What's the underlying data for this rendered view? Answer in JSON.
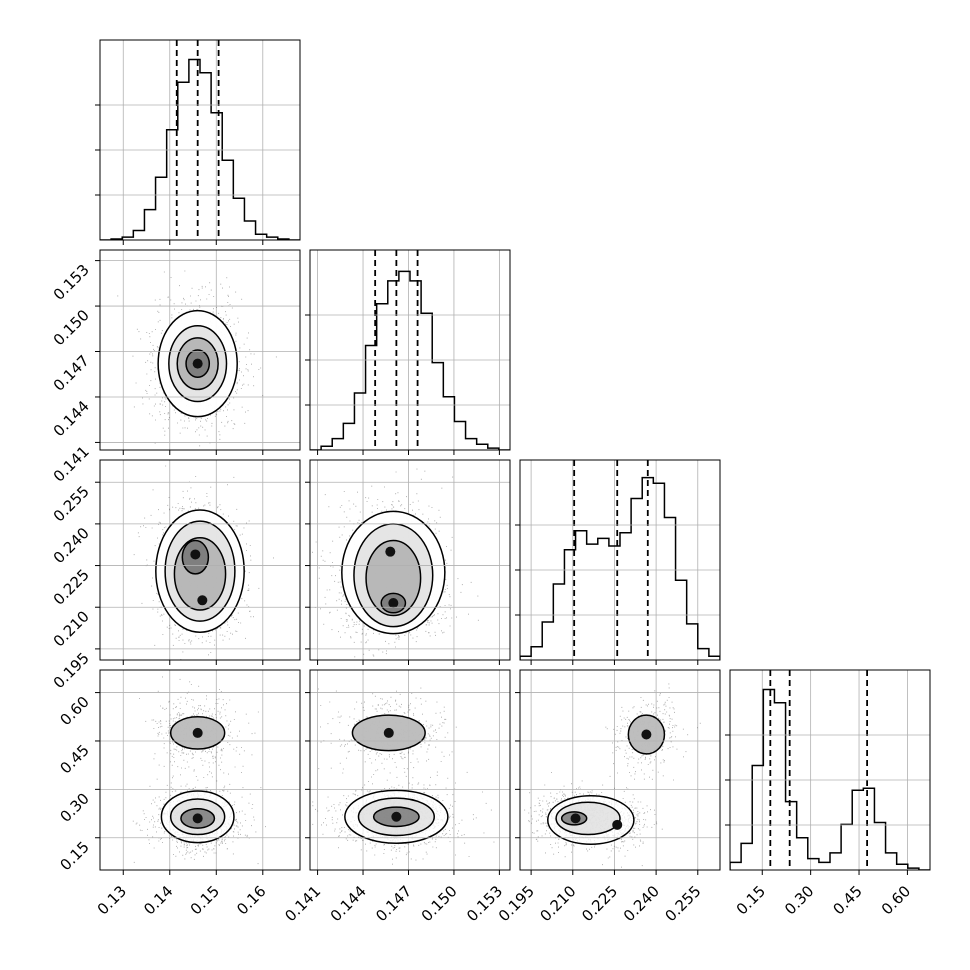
{
  "chart_data": {
    "type": "corner",
    "grid": true,
    "parameters": [
      {
        "range": [
          0.125,
          0.168
        ],
        "ticks": [
          "0.13",
          "0.14",
          "0.15",
          "0.16"
        ],
        "tick_values": [
          0.13,
          0.14,
          0.15,
          0.16
        ],
        "histogram": [
          0.0,
          0.005,
          0.015,
          0.05,
          0.16,
          0.33,
          0.58,
          0.83,
          0.95,
          0.88,
          0.67,
          0.42,
          0.22,
          0.1,
          0.03,
          0.015,
          0.005,
          0.0
        ],
        "quantiles": [
          0.1415,
          0.146,
          0.1505
        ]
      },
      {
        "range": [
          0.1405,
          0.1537
        ],
        "ticks": [
          "0.141",
          "0.144",
          "0.147",
          "0.150",
          "0.153"
        ],
        "tick_values": [
          0.141,
          0.144,
          0.147,
          0.15,
          0.153
        ],
        "histogram": [
          0.0,
          0.02,
          0.06,
          0.14,
          0.3,
          0.55,
          0.77,
          0.89,
          0.94,
          0.89,
          0.72,
          0.46,
          0.28,
          0.15,
          0.06,
          0.03,
          0.01,
          0.0
        ],
        "quantiles": [
          0.1448,
          0.1462,
          0.1476
        ]
      },
      {
        "range": [
          0.191,
          0.263
        ],
        "ticks": [
          "0.195",
          "0.210",
          "0.225",
          "0.240",
          "0.255"
        ],
        "tick_values": [
          0.195,
          0.21,
          0.225,
          0.24,
          0.255
        ],
        "histogram": [
          0.02,
          0.07,
          0.2,
          0.4,
          0.58,
          0.68,
          0.61,
          0.64,
          0.6,
          0.67,
          0.85,
          0.96,
          0.93,
          0.75,
          0.42,
          0.19,
          0.06,
          0.02
        ],
        "quantiles": [
          0.2105,
          0.226,
          0.237
        ]
      },
      {
        "range": [
          0.05,
          0.67
        ],
        "ticks": [
          "0.15",
          "0.30",
          "0.45",
          "0.60"
        ],
        "tick_values": [
          0.15,
          0.3,
          0.45,
          0.6
        ],
        "histogram": [
          0.04,
          0.14,
          0.55,
          0.95,
          0.88,
          0.36,
          0.17,
          0.06,
          0.04,
          0.09,
          0.24,
          0.42,
          0.43,
          0.25,
          0.09,
          0.03,
          0.01,
          0.0
        ],
        "quantiles": [
          0.175,
          0.235,
          0.475
        ]
      }
    ],
    "joint": [
      {
        "row": 1,
        "col": 0,
        "modes": [
          {
            "x": 0.146,
            "y": 0.1462,
            "sx": 0.0032,
            "sy": 0.00145,
            "w": 1.0
          }
        ],
        "contours": [
          [
            0.146,
            0.1462,
            0.0025,
            0.0009
          ],
          [
            0.146,
            0.1462,
            0.0044,
            0.0017
          ],
          [
            0.146,
            0.1462,
            0.0062,
            0.0025
          ],
          [
            0.146,
            0.1462,
            0.0085,
            0.0035
          ]
        ]
      },
      {
        "row": 2,
        "col": 0,
        "modes": [
          {
            "x": 0.1455,
            "y": 0.229,
            "sx": 0.0032,
            "sy": 0.007,
            "w": 1.0
          },
          {
            "x": 0.147,
            "y": 0.2125,
            "sx": 0.003,
            "sy": 0.005,
            "w": 0.75
          }
        ],
        "contours": [
          [
            0.1455,
            0.228,
            0.0028,
            0.006
          ],
          [
            0.1465,
            0.222,
            0.0055,
            0.013
          ],
          [
            0.1465,
            0.223,
            0.0075,
            0.018
          ],
          [
            0.1465,
            0.223,
            0.0095,
            0.022
          ]
        ]
      },
      {
        "row": 2,
        "col": 1,
        "modes": [
          {
            "x": 0.146,
            "y": 0.2115,
            "sx": 0.0013,
            "sy": 0.005,
            "w": 1.0
          },
          {
            "x": 0.1458,
            "y": 0.23,
            "sx": 0.0012,
            "sy": 0.0075,
            "w": 0.8
          }
        ],
        "contours": [
          [
            0.146,
            0.2115,
            0.0008,
            0.0035
          ],
          [
            0.146,
            0.2205,
            0.0018,
            0.0135
          ],
          [
            0.146,
            0.2215,
            0.0026,
            0.0185
          ],
          [
            0.146,
            0.2225,
            0.0034,
            0.022
          ]
        ]
      },
      {
        "row": 3,
        "col": 0,
        "modes": [
          {
            "x": 0.146,
            "y": 0.21,
            "sx": 0.0034,
            "sy": 0.035,
            "w": 1.0
          },
          {
            "x": 0.146,
            "y": 0.475,
            "sx": 0.0033,
            "sy": 0.04,
            "w": 0.45
          }
        ],
        "contours": [
          [
            0.146,
            0.21,
            0.0036,
            0.03
          ],
          [
            0.146,
            0.215,
            0.0058,
            0.055
          ],
          [
            0.146,
            0.215,
            0.0078,
            0.08
          ],
          [
            0.146,
            0.475,
            0.0058,
            0.05
          ]
        ]
      },
      {
        "row": 3,
        "col": 1,
        "modes": [
          {
            "x": 0.1462,
            "y": 0.215,
            "sx": 0.0014,
            "sy": 0.035,
            "w": 1.0
          },
          {
            "x": 0.1457,
            "y": 0.475,
            "sx": 0.0013,
            "sy": 0.04,
            "w": 0.45
          }
        ],
        "contours": [
          [
            0.1462,
            0.215,
            0.0015,
            0.03
          ],
          [
            0.1462,
            0.215,
            0.0025,
            0.058
          ],
          [
            0.1462,
            0.215,
            0.0034,
            0.082
          ],
          [
            0.1457,
            0.475,
            0.0024,
            0.055
          ]
        ]
      },
      {
        "row": 3,
        "col": 2,
        "modes": [
          {
            "x": 0.211,
            "y": 0.21,
            "sx": 0.005,
            "sy": 0.03,
            "w": 1.0
          },
          {
            "x": 0.226,
            "y": 0.19,
            "sx": 0.004,
            "sy": 0.03,
            "w": 0.55
          },
          {
            "x": 0.2365,
            "y": 0.47,
            "sx": 0.004,
            "sy": 0.04,
            "w": 0.5
          }
        ],
        "contours": [
          [
            0.2105,
            0.21,
            0.0045,
            0.02
          ],
          [
            0.2155,
            0.21,
            0.0115,
            0.05
          ],
          [
            0.2165,
            0.205,
            0.0155,
            0.075
          ],
          [
            0.2365,
            0.47,
            0.0065,
            0.06
          ]
        ]
      }
    ]
  }
}
